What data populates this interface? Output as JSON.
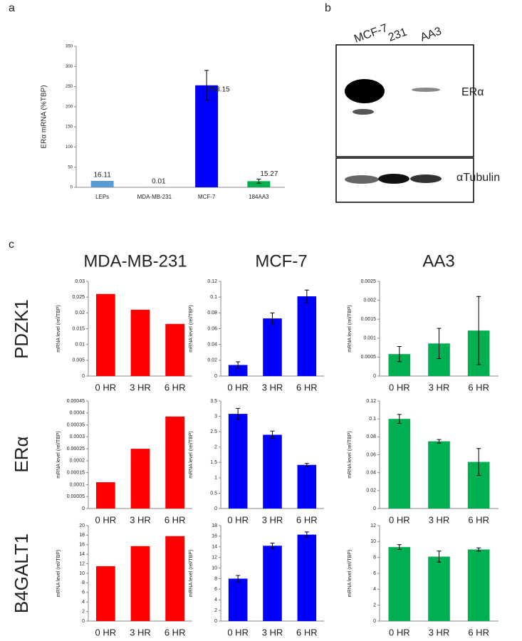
{
  "panels": {
    "a": "a",
    "b": "b",
    "c": "c"
  },
  "blot": {
    "lanes": [
      "MCF-7",
      "231",
      "AA3"
    ],
    "proteins": [
      "ERα",
      "αTubulin"
    ]
  },
  "panel_c": {
    "columns": [
      "MDA-MB-231",
      "MCF-7",
      "AA3"
    ],
    "rows": [
      "PDZK1",
      "ERα",
      "B4GALT1"
    ]
  },
  "chart_data": [
    {
      "type": "bar",
      "y_label": "ERα mRNA (%TBP)",
      "categories": [
        "LEPs",
        "MDA-MB-231",
        "MCF-7",
        "184AA3"
      ],
      "values": [
        16.11,
        0.01,
        253.15,
        15.27
      ],
      "error": [
        null,
        null,
        37,
        5
      ],
      "colors": [
        "#5b9bd5",
        "#ff0000",
        "#0000ff",
        "#00b050"
      ],
      "ylim": [
        0,
        350
      ],
      "yticks": [
        0,
        50,
        100,
        150,
        200,
        250,
        300,
        350
      ]
    },
    {
      "type": "bar",
      "y_label": "mRNA level (rel/TBP)",
      "categories": [
        "0 HR",
        "3 HR",
        "6 HR"
      ],
      "values": [
        0.026,
        0.021,
        0.0165
      ],
      "color": "#ff0000",
      "ylim": [
        0,
        0.03
      ],
      "yticks": [
        0,
        0.005,
        0.01,
        0.015,
        0.02,
        0.025,
        0.03
      ]
    },
    {
      "type": "bar",
      "y_label": "mRNA level (rel/TBP)",
      "categories": [
        "0 HR",
        "3 HR",
        "6 HR"
      ],
      "values": [
        0.014,
        0.073,
        0.101
      ],
      "error": [
        0.004,
        0.007,
        0.008
      ],
      "color": "#0000ff",
      "ylim": [
        0,
        0.12
      ],
      "yticks": [
        0,
        0.02,
        0.04,
        0.06,
        0.08,
        0.1,
        0.12
      ]
    },
    {
      "type": "bar",
      "y_label": "mRNA level (rel/TBP)",
      "categories": [
        "0 HR",
        "3 HR",
        "6 HR"
      ],
      "values": [
        0.00058,
        0.00086,
        0.0012
      ],
      "error": [
        0.0002,
        0.0004,
        0.0009
      ],
      "color": "#00b050",
      "ylim": [
        0,
        0.0025
      ],
      "yticks": [
        0,
        0.0005,
        0.001,
        0.0015,
        0.002,
        0.0025
      ]
    },
    {
      "type": "bar",
      "y_label": "mRNA level (rel/TBP)",
      "categories": [
        "0 HR",
        "3 HR",
        "6 HR"
      ],
      "values": [
        0.00011,
        0.00025,
        0.000385
      ],
      "color": "#ff0000",
      "ylim": [
        0,
        0.00045
      ],
      "yticks": [
        0,
        5e-05,
        0.0001,
        0.00015,
        0.0002,
        0.00025,
        0.0003,
        0.00035,
        0.0004,
        0.00045
      ]
    },
    {
      "type": "bar",
      "y_label": "mRNA level (rel/TBP)",
      "categories": [
        "0 HR",
        "3 HR",
        "6 HR"
      ],
      "values": [
        3.08,
        2.4,
        1.42
      ],
      "error": [
        0.18,
        0.12,
        0.05
      ],
      "color": "#0000ff",
      "ylim": [
        0,
        3.5
      ],
      "yticks": [
        0,
        0.5,
        1,
        1.5,
        2,
        2.5,
        3,
        3.5
      ]
    },
    {
      "type": "bar",
      "y_label": "mRNA level (rel/TBP)",
      "categories": [
        "0 HR",
        "3 HR",
        "6 HR"
      ],
      "values": [
        0.1,
        0.075,
        0.052
      ],
      "error": [
        0.005,
        0.002,
        0.015
      ],
      "color": "#00b050",
      "ylim": [
        0,
        0.12
      ],
      "yticks": [
        0,
        0.02,
        0.04,
        0.06,
        0.08,
        0.1,
        0.12
      ]
    },
    {
      "type": "bar",
      "y_label": "mRNA level (rel/TBP)",
      "categories": [
        "0 HR",
        "3 HR",
        "6 HR"
      ],
      "values": [
        11.5,
        15.7,
        17.8
      ],
      "color": "#ff0000",
      "ylim": [
        0,
        20
      ],
      "yticks": [
        0,
        2,
        4,
        6,
        8,
        10,
        12,
        14,
        16,
        18,
        20
      ]
    },
    {
      "type": "bar",
      "y_label": "mRNA level (rel/TBP)",
      "categories": [
        "0 HR",
        "3 HR",
        "6 HR"
      ],
      "values": [
        8,
        14.2,
        16.3
      ],
      "error": [
        0.6,
        0.5,
        0.5
      ],
      "color": "#0000ff",
      "ylim": [
        0,
        18
      ],
      "yticks": [
        0,
        2,
        4,
        6,
        8,
        10,
        12,
        14,
        16,
        18
      ]
    },
    {
      "type": "bar",
      "y_label": "mRNA level (rel/TBP)",
      "categories": [
        "0 HR",
        "3 HR",
        "6 HR"
      ],
      "values": [
        9.3,
        8.1,
        9
      ],
      "error": [
        0.3,
        0.7,
        0.2
      ],
      "color": "#00b050",
      "ylim": [
        0,
        12
      ],
      "yticks": [
        0,
        2,
        4,
        6,
        8,
        10,
        12
      ]
    }
  ]
}
